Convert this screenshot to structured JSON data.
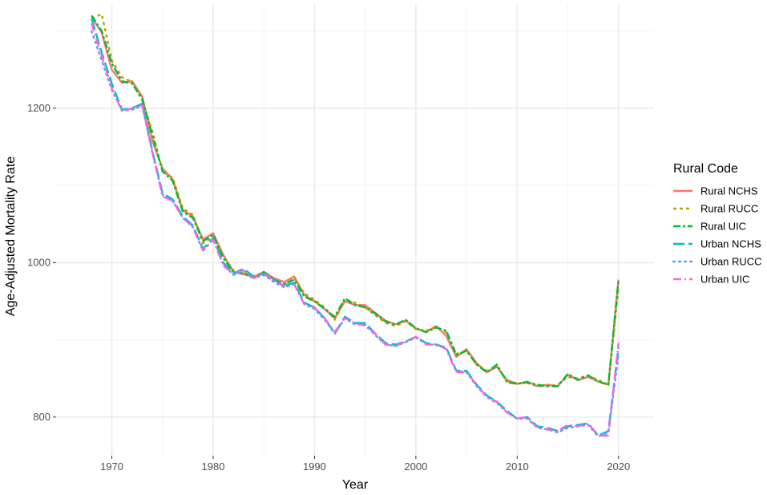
{
  "chart_data": {
    "type": "line",
    "xlabel": "Year",
    "ylabel": "Age-Adjusted Mortality Rate",
    "xlim": [
      1964.5,
      2023.5
    ],
    "ylim": [
      750,
      1335
    ],
    "x_ticks": [
      1970,
      1980,
      1990,
      2000,
      2010,
      2020
    ],
    "y_ticks": [
      800,
      1000,
      1200
    ],
    "grid": true,
    "legend": {
      "title": "Rural Code",
      "position": "right"
    },
    "x": [
      1968,
      1969,
      1970,
      1971,
      1972,
      1973,
      1974,
      1975,
      1976,
      1977,
      1978,
      1979,
      1980,
      1981,
      1982,
      1983,
      1984,
      1985,
      1986,
      1987,
      1988,
      1989,
      1990,
      1991,
      1992,
      1993,
      1994,
      1995,
      1996,
      1997,
      1998,
      1999,
      2000,
      2001,
      2002,
      2003,
      2004,
      2005,
      2006,
      2007,
      2008,
      2009,
      2010,
      2011,
      2012,
      2013,
      2014,
      2015,
      2016,
      2017,
      2018,
      2019,
      2020
    ],
    "series": [
      {
        "name": "Rural NCHS",
        "color": "#F8766D",
        "dash": "solid",
        "values": [
          1318,
          1298,
          1250,
          1233,
          1235,
          1215,
          1158,
          1122,
          1108,
          1068,
          1060,
          1030,
          1038,
          1010,
          988,
          985,
          982,
          988,
          980,
          975,
          982,
          958,
          950,
          940,
          928,
          950,
          945,
          945,
          935,
          925,
          920,
          925,
          915,
          910,
          918,
          905,
          878,
          888,
          870,
          858,
          865,
          848,
          843,
          846,
          840,
          842,
          840,
          855,
          848,
          852,
          846,
          842,
          978
        ]
      },
      {
        "name": "Rural RUCC",
        "color": "#B79F00",
        "dash": "4,4",
        "values": [
          1316,
          1322,
          1262,
          1240,
          1234,
          1210,
          1170,
          1118,
          1110,
          1070,
          1062,
          1025,
          1034,
          1008,
          990,
          988,
          980,
          986,
          979,
          972,
          980,
          960,
          952,
          942,
          926,
          952,
          948,
          942,
          932,
          922,
          918,
          924,
          914,
          912,
          916,
          910,
          882,
          886,
          868,
          860,
          866,
          846,
          844,
          844,
          840,
          840,
          842,
          852,
          850,
          854,
          848,
          842,
          968
        ]
      },
      {
        "name": "Rural UIC",
        "color": "#00BA38",
        "dash": "9,3,3,3",
        "values": [
          1320,
          1300,
          1258,
          1235,
          1232,
          1212,
          1165,
          1118,
          1106,
          1066,
          1058,
          1028,
          1036,
          1006,
          988,
          986,
          980,
          988,
          978,
          972,
          978,
          956,
          950,
          940,
          930,
          954,
          945,
          942,
          934,
          924,
          920,
          926,
          915,
          910,
          916,
          912,
          880,
          886,
          868,
          858,
          868,
          845,
          843,
          845,
          842,
          840,
          840,
          856,
          848,
          854,
          846,
          842,
          978
        ]
      },
      {
        "name": "Urban NCHS",
        "color": "#00BFC4",
        "dash": "14,5",
        "values": [
          1316,
          1272,
          1232,
          1198,
          1200,
          1206,
          1145,
          1090,
          1082,
          1060,
          1048,
          1018,
          1032,
          1000,
          986,
          992,
          982,
          986,
          978,
          970,
          974,
          948,
          942,
          928,
          908,
          930,
          922,
          922,
          908,
          896,
          894,
          898,
          904,
          896,
          894,
          890,
          860,
          860,
          842,
          828,
          820,
          808,
          798,
          800,
          788,
          786,
          782,
          788,
          790,
          792,
          776,
          782,
          890
        ]
      },
      {
        "name": "Urban RUCC",
        "color": "#619CFF",
        "dash": "2,5",
        "values": [
          1300,
          1262,
          1224,
          1197,
          1198,
          1203,
          1142,
          1088,
          1080,
          1058,
          1046,
          1015,
          1030,
          998,
          984,
          990,
          980,
          984,
          975,
          968,
          972,
          946,
          940,
          926,
          908,
          928,
          920,
          920,
          906,
          894,
          892,
          897,
          903,
          895,
          893,
          889,
          860,
          858,
          840,
          826,
          818,
          806,
          798,
          798,
          786,
          784,
          780,
          786,
          788,
          790,
          775,
          780,
          880
        ]
      },
      {
        "name": "Urban UIC",
        "color": "#F564E3",
        "dash": "10,4,2,4",
        "values": [
          1310,
          1268,
          1226,
          1196,
          1200,
          1204,
          1143,
          1086,
          1080,
          1058,
          1046,
          1016,
          1030,
          996,
          986,
          990,
          980,
          986,
          976,
          970,
          972,
          946,
          942,
          928,
          910,
          928,
          922,
          918,
          908,
          894,
          892,
          898,
          904,
          894,
          894,
          888,
          858,
          858,
          842,
          826,
          820,
          806,
          798,
          800,
          786,
          784,
          782,
          790,
          788,
          792,
          776,
          776,
          896
        ]
      }
    ]
  }
}
